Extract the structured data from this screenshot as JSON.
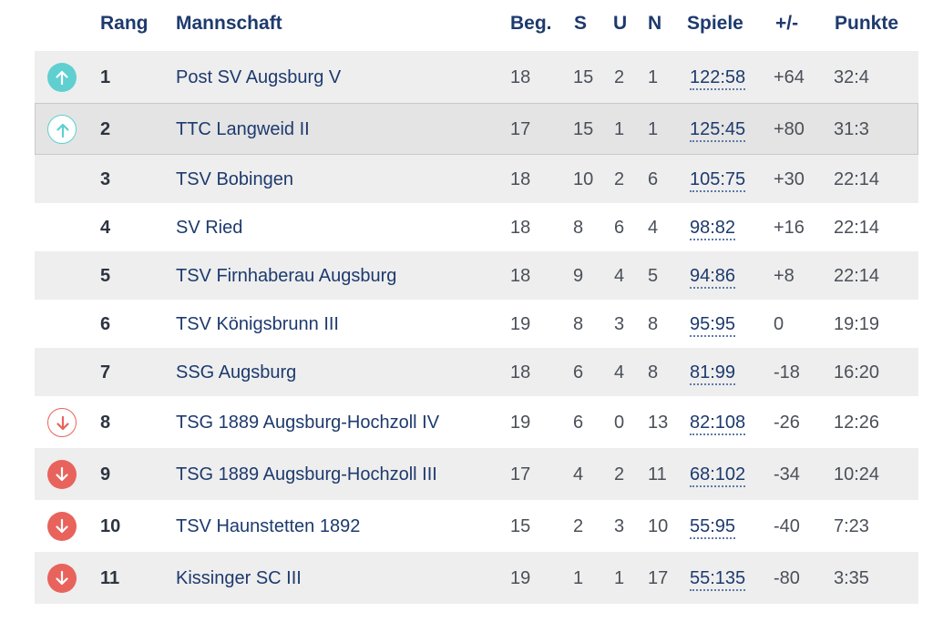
{
  "header": {
    "rank": "Rang",
    "team": "Mannschaft",
    "played": "Beg.",
    "won": "S",
    "draw": "U",
    "lost": "N",
    "games": "Spiele",
    "diff": "+/-",
    "points": "Punkte"
  },
  "rows": [
    {
      "rank": "1",
      "team": "Post SV Augsburg V",
      "played": "18",
      "won": "15",
      "draw": "2",
      "lost": "1",
      "games": "122:58",
      "diff": "+64",
      "points": "32:4",
      "status": "promotion"
    },
    {
      "rank": "2",
      "team": "TTC Langweid II",
      "played": "17",
      "won": "15",
      "draw": "1",
      "lost": "1",
      "games": "125:45",
      "diff": "+80",
      "points": "31:3",
      "status": "promotion-relegation"
    },
    {
      "rank": "3",
      "team": "TSV Bobingen",
      "played": "18",
      "won": "10",
      "draw": "2",
      "lost": "6",
      "games": "105:75",
      "diff": "+30",
      "points": "22:14",
      "status": "none"
    },
    {
      "rank": "4",
      "team": "SV Ried",
      "played": "18",
      "won": "8",
      "draw": "6",
      "lost": "4",
      "games": "98:82",
      "diff": "+16",
      "points": "22:14",
      "status": "none"
    },
    {
      "rank": "5",
      "team": "TSV Firnhaberau Augsburg",
      "played": "18",
      "won": "9",
      "draw": "4",
      "lost": "5",
      "games": "94:86",
      "diff": "+8",
      "points": "22:14",
      "status": "none"
    },
    {
      "rank": "6",
      "team": "TSV Königsbrunn III",
      "played": "19",
      "won": "8",
      "draw": "3",
      "lost": "8",
      "games": "95:95",
      "diff": "0",
      "points": "19:19",
      "status": "none"
    },
    {
      "rank": "7",
      "team": "SSG Augsburg",
      "played": "18",
      "won": "6",
      "draw": "4",
      "lost": "8",
      "games": "81:99",
      "diff": "-18",
      "points": "16:20",
      "status": "none"
    },
    {
      "rank": "8",
      "team": "TSG 1889 Augsburg-Hochzoll IV",
      "played": "19",
      "won": "6",
      "draw": "0",
      "lost": "13",
      "games": "82:108",
      "diff": "-26",
      "points": "12:26",
      "status": "relegation-playoff"
    },
    {
      "rank": "9",
      "team": "TSG 1889 Augsburg-Hochzoll III",
      "played": "17",
      "won": "4",
      "draw": "2",
      "lost": "11",
      "games": "68:102",
      "diff": "-34",
      "points": "10:24",
      "status": "relegation"
    },
    {
      "rank": "10",
      "team": "TSV Haunstetten 1892",
      "played": "15",
      "won": "2",
      "draw": "3",
      "lost": "10",
      "games": "55:95",
      "diff": "-40",
      "points": "7:23",
      "status": "relegation"
    },
    {
      "rank": "11",
      "team": "Kissinger SC III",
      "played": "19",
      "won": "1",
      "draw": "1",
      "lost": "17",
      "games": "55:135",
      "diff": "-80",
      "points": "3:35",
      "status": "relegation"
    }
  ],
  "colors": {
    "promotion": "#5fcfd0",
    "relegation": "#e8635c",
    "header_text": "#1d3a6e",
    "row_shade": "#eeeeee"
  },
  "icons": {
    "promotion": "arrow-up-icon",
    "promotion-relegation": "arrow-up-outline-icon",
    "relegation-playoff": "arrow-down-outline-icon",
    "relegation": "arrow-down-icon"
  }
}
